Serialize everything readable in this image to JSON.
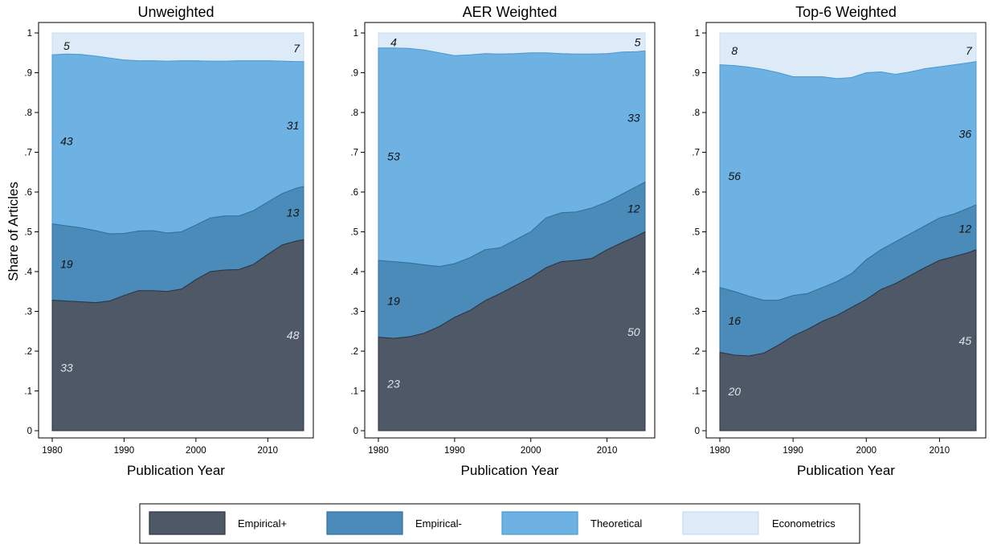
{
  "chart_data": {
    "type": "area",
    "stacked": true,
    "ylabel": "Share of Articles",
    "xlabel": "Publication Year",
    "xlim": [
      1980,
      2015
    ],
    "ylim": [
      0,
      1
    ],
    "xticks": [
      1980,
      1990,
      2000,
      2010
    ],
    "yticks": [
      "0",
      ".1",
      ".2",
      ".3",
      ".4",
      ".5",
      ".6",
      ".7",
      ".8",
      ".9",
      "1"
    ],
    "legend": {
      "position": "bottom",
      "entries": [
        "Empirical+",
        "Empirical-",
        "Theoretical",
        "Econometrics"
      ]
    },
    "colors": {
      "Empirical+": "#4f5866",
      "Empirical-": "#4a8bb9",
      "Theoretical": "#6db2e2",
      "Econometrics": "#dcebf7"
    },
    "panels": [
      {
        "title": "Unweighted",
        "x": [
          1980,
          1982,
          1984,
          1986,
          1988,
          1990,
          1992,
          1994,
          1996,
          1998,
          2000,
          2002,
          2004,
          2006,
          2008,
          2010,
          2012,
          2014,
          2015
        ],
        "boundaries": {
          "Empirical+": [
            0.328,
            0.326,
            0.324,
            0.322,
            0.326,
            0.34,
            0.352,
            0.352,
            0.35,
            0.356,
            0.38,
            0.4,
            0.404,
            0.405,
            0.418,
            0.443,
            0.467,
            0.477,
            0.48
          ],
          "Empirical-": [
            0.52,
            0.515,
            0.51,
            0.503,
            0.495,
            0.496,
            0.502,
            0.503,
            0.497,
            0.5,
            0.517,
            0.535,
            0.54,
            0.54,
            0.553,
            0.575,
            0.596,
            0.61,
            0.614
          ],
          "Theoretical": [
            0.945,
            0.947,
            0.946,
            0.942,
            0.937,
            0.932,
            0.93,
            0.93,
            0.929,
            0.93,
            0.93,
            0.929,
            0.929,
            0.93,
            0.93,
            0.93,
            0.929,
            0.928,
            0.928
          ]
        },
        "annotations": [
          {
            "series": "Econometrics",
            "label": "5",
            "x": 1982,
            "y": 0.968
          },
          {
            "series": "Econometrics",
            "label": "7",
            "x": 2014,
            "y": 0.962
          },
          {
            "series": "Theoretical",
            "label": "43",
            "x": 1982,
            "y": 0.728
          },
          {
            "series": "Theoretical",
            "label": "31",
            "x": 2013.5,
            "y": 0.768
          },
          {
            "series": "Empirical-",
            "label": "19",
            "x": 1982,
            "y": 0.419
          },
          {
            "series": "Empirical-",
            "label": "13",
            "x": 2013.5,
            "y": 0.548
          },
          {
            "series": "Empirical+",
            "label": "33",
            "x": 1982,
            "y": 0.159
          },
          {
            "series": "Empirical+",
            "label": "48",
            "x": 2013.5,
            "y": 0.24
          }
        ]
      },
      {
        "title": "AER Weighted",
        "x": [
          1980,
          1982,
          1984,
          1986,
          1988,
          1990,
          1992,
          1994,
          1996,
          1998,
          2000,
          2002,
          2004,
          2006,
          2008,
          2010,
          2012,
          2014,
          2015
        ],
        "boundaries": {
          "Empirical+": [
            0.235,
            0.232,
            0.236,
            0.245,
            0.262,
            0.285,
            0.302,
            0.327,
            0.345,
            0.365,
            0.385,
            0.41,
            0.425,
            0.428,
            0.433,
            0.455,
            0.473,
            0.49,
            0.5
          ],
          "Empirical-": [
            0.428,
            0.425,
            0.422,
            0.417,
            0.413,
            0.42,
            0.435,
            0.455,
            0.46,
            0.48,
            0.5,
            0.535,
            0.548,
            0.55,
            0.56,
            0.575,
            0.595,
            0.615,
            0.625
          ],
          "Theoretical": [
            0.962,
            0.962,
            0.961,
            0.957,
            0.95,
            0.943,
            0.945,
            0.948,
            0.947,
            0.948,
            0.95,
            0.95,
            0.948,
            0.947,
            0.947,
            0.948,
            0.952,
            0.953,
            0.955
          ]
        },
        "annotations": [
          {
            "series": "Econometrics",
            "label": "4",
            "x": 1982,
            "y": 0.977
          },
          {
            "series": "Econometrics",
            "label": "5",
            "x": 2014,
            "y": 0.977
          },
          {
            "series": "Theoretical",
            "label": "53",
            "x": 1982,
            "y": 0.69
          },
          {
            "series": "Theoretical",
            "label": "33",
            "x": 2013.5,
            "y": 0.787
          },
          {
            "series": "Empirical-",
            "label": "19",
            "x": 1982,
            "y": 0.326
          },
          {
            "series": "Empirical-",
            "label": "12",
            "x": 2013.5,
            "y": 0.559
          },
          {
            "series": "Empirical+",
            "label": "23",
            "x": 1982,
            "y": 0.118
          },
          {
            "series": "Empirical+",
            "label": "50",
            "x": 2013.5,
            "y": 0.248
          }
        ]
      },
      {
        "title": "Top-6 Weighted",
        "x": [
          1980,
          1982,
          1984,
          1986,
          1988,
          1990,
          1992,
          1994,
          1996,
          1998,
          2000,
          2002,
          2004,
          2006,
          2008,
          2010,
          2012,
          2014,
          2015
        ],
        "boundaries": {
          "Empirical+": [
            0.197,
            0.19,
            0.188,
            0.195,
            0.215,
            0.238,
            0.255,
            0.275,
            0.29,
            0.31,
            0.33,
            0.355,
            0.37,
            0.39,
            0.41,
            0.428,
            0.438,
            0.448,
            0.455
          ],
          "Empirical-": [
            0.36,
            0.35,
            0.338,
            0.328,
            0.328,
            0.34,
            0.345,
            0.36,
            0.375,
            0.395,
            0.43,
            0.455,
            0.475,
            0.495,
            0.515,
            0.535,
            0.545,
            0.56,
            0.568
          ],
          "Theoretical": [
            0.92,
            0.918,
            0.914,
            0.908,
            0.9,
            0.89,
            0.89,
            0.89,
            0.885,
            0.888,
            0.9,
            0.902,
            0.896,
            0.902,
            0.91,
            0.915,
            0.92,
            0.925,
            0.928
          ]
        },
        "annotations": [
          {
            "series": "Econometrics",
            "label": "8",
            "x": 1982,
            "y": 0.956
          },
          {
            "series": "Econometrics",
            "label": "7",
            "x": 2014,
            "y": 0.956
          },
          {
            "series": "Theoretical",
            "label": "56",
            "x": 1982,
            "y": 0.64
          },
          {
            "series": "Theoretical",
            "label": "36",
            "x": 2013.5,
            "y": 0.746
          },
          {
            "series": "Empirical-",
            "label": "16",
            "x": 1982,
            "y": 0.277
          },
          {
            "series": "Empirical-",
            "label": "12",
            "x": 2013.5,
            "y": 0.508
          },
          {
            "series": "Empirical+",
            "label": "20",
            "x": 1982,
            "y": 0.099
          },
          {
            "series": "Empirical+",
            "label": "45",
            "x": 2013.5,
            "y": 0.226
          }
        ]
      }
    ]
  }
}
